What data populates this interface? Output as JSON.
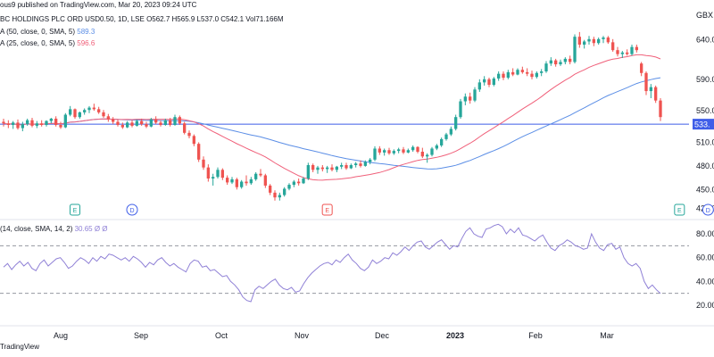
{
  "header": {
    "published": "ous9 published on TradingView.com, Mar 20, 2023 09:24 UTC",
    "symbol": "BC HOLDINGS PLC ORD USD0.50, 1D, LSE",
    "ohlc": "O562.7  H565.9  L537.0  C542.1  Vol71.166M",
    "ma50_label": "A (50, close, 0, SMA, 5)",
    "ma50_value": "589.3",
    "ma25_label": "A (25, close, 0, SMA, 5)",
    "ma25_value": "596.6",
    "rsi_label": "(14, close, SMA, 14, 2)",
    "rsi_values": "30.65  Ø  Ø"
  },
  "watermark": "TradingView",
  "colors": {
    "up": "#26a69a",
    "down": "#ef5350",
    "ma25": "#f0607a",
    "ma50": "#5b8ee6",
    "hline": "#3f5ee8",
    "rsi": "#8f80d6",
    "event_e": "#26a69a",
    "event_d": "#3f5ee8",
    "event_flash": "#9c27b0"
  },
  "chart_data": [
    {
      "type": "candlestick",
      "currency": "GBX",
      "y_ticks": [
        "640.0",
        "590.0",
        "550.0",
        "510.0",
        "480.0",
        "450.0",
        "426.0"
      ],
      "ylim": [
        413,
        668
      ],
      "x_labels": [
        "Aug",
        "Sep",
        "Oct",
        "Nov",
        "Dec",
        "2023",
        "Feb",
        "Mar"
      ],
      "price_line": {
        "value": 533.0,
        "label": "533."
      },
      "ma_series": [
        {
          "name": "MA 25",
          "value_last": 596.6
        },
        {
          "name": "MA 50",
          "value_last": 589.3
        }
      ],
      "events": [
        "E",
        "D",
        "E",
        "E",
        "D",
        "⚡"
      ],
      "ohlc": [
        {
          "o": 536,
          "h": 540,
          "l": 530,
          "c": 534
        },
        {
          "o": 534,
          "h": 538,
          "l": 528,
          "c": 532
        },
        {
          "o": 532,
          "h": 537,
          "l": 527,
          "c": 535
        },
        {
          "o": 535,
          "h": 539,
          "l": 526,
          "c": 528
        },
        {
          "o": 528,
          "h": 536,
          "l": 524,
          "c": 533
        },
        {
          "o": 533,
          "h": 540,
          "l": 531,
          "c": 538
        },
        {
          "o": 538,
          "h": 541,
          "l": 529,
          "c": 531
        },
        {
          "o": 531,
          "h": 537,
          "l": 528,
          "c": 534
        },
        {
          "o": 534,
          "h": 538,
          "l": 530,
          "c": 532
        },
        {
          "o": 532,
          "h": 538,
          "l": 530,
          "c": 537
        },
        {
          "o": 537,
          "h": 541,
          "l": 534,
          "c": 540
        },
        {
          "o": 540,
          "h": 543,
          "l": 530,
          "c": 532
        },
        {
          "o": 532,
          "h": 536,
          "l": 527,
          "c": 529
        },
        {
          "o": 529,
          "h": 547,
          "l": 528,
          "c": 545
        },
        {
          "o": 545,
          "h": 556,
          "l": 543,
          "c": 552
        },
        {
          "o": 552,
          "h": 553,
          "l": 540,
          "c": 542
        },
        {
          "o": 542,
          "h": 549,
          "l": 540,
          "c": 548
        },
        {
          "o": 548,
          "h": 553,
          "l": 545,
          "c": 551
        },
        {
          "o": 551,
          "h": 556,
          "l": 547,
          "c": 554
        },
        {
          "o": 554,
          "h": 559,
          "l": 550,
          "c": 552
        },
        {
          "o": 552,
          "h": 555,
          "l": 546,
          "c": 548
        },
        {
          "o": 548,
          "h": 551,
          "l": 541,
          "c": 543
        },
        {
          "o": 543,
          "h": 546,
          "l": 536,
          "c": 539
        },
        {
          "o": 539,
          "h": 542,
          "l": 533,
          "c": 536
        },
        {
          "o": 536,
          "h": 539,
          "l": 530,
          "c": 532
        },
        {
          "o": 532,
          "h": 535,
          "l": 527,
          "c": 529
        },
        {
          "o": 529,
          "h": 537,
          "l": 528,
          "c": 535
        },
        {
          "o": 535,
          "h": 538,
          "l": 529,
          "c": 531
        },
        {
          "o": 531,
          "h": 539,
          "l": 530,
          "c": 537
        },
        {
          "o": 537,
          "h": 540,
          "l": 531,
          "c": 533
        },
        {
          "o": 533,
          "h": 536,
          "l": 528,
          "c": 530
        },
        {
          "o": 530,
          "h": 541,
          "l": 529,
          "c": 539
        },
        {
          "o": 539,
          "h": 543,
          "l": 533,
          "c": 535
        },
        {
          "o": 535,
          "h": 538,
          "l": 530,
          "c": 532
        },
        {
          "o": 532,
          "h": 540,
          "l": 531,
          "c": 538
        },
        {
          "o": 538,
          "h": 541,
          "l": 530,
          "c": 532
        },
        {
          "o": 532,
          "h": 545,
          "l": 531,
          "c": 542
        },
        {
          "o": 542,
          "h": 544,
          "l": 532,
          "c": 534
        },
        {
          "o": 534,
          "h": 536,
          "l": 520,
          "c": 522
        },
        {
          "o": 522,
          "h": 525,
          "l": 515,
          "c": 518
        },
        {
          "o": 518,
          "h": 520,
          "l": 505,
          "c": 508
        },
        {
          "o": 508,
          "h": 510,
          "l": 485,
          "c": 488
        },
        {
          "o": 488,
          "h": 492,
          "l": 475,
          "c": 478
        },
        {
          "o": 478,
          "h": 482,
          "l": 460,
          "c": 464
        },
        {
          "o": 464,
          "h": 470,
          "l": 455,
          "c": 466
        },
        {
          "o": 466,
          "h": 478,
          "l": 464,
          "c": 475
        },
        {
          "o": 475,
          "h": 477,
          "l": 462,
          "c": 465
        },
        {
          "o": 465,
          "h": 468,
          "l": 456,
          "c": 459
        },
        {
          "o": 459,
          "h": 466,
          "l": 457,
          "c": 463
        },
        {
          "o": 463,
          "h": 465,
          "l": 450,
          "c": 453
        },
        {
          "o": 453,
          "h": 462,
          "l": 451,
          "c": 460
        },
        {
          "o": 460,
          "h": 468,
          "l": 455,
          "c": 458
        },
        {
          "o": 458,
          "h": 466,
          "l": 456,
          "c": 463
        },
        {
          "o": 463,
          "h": 472,
          "l": 461,
          "c": 470
        },
        {
          "o": 470,
          "h": 476,
          "l": 466,
          "c": 468
        },
        {
          "o": 468,
          "h": 470,
          "l": 452,
          "c": 455
        },
        {
          "o": 455,
          "h": 457,
          "l": 443,
          "c": 446
        },
        {
          "o": 446,
          "h": 449,
          "l": 436,
          "c": 440
        },
        {
          "o": 440,
          "h": 446,
          "l": 436,
          "c": 443
        },
        {
          "o": 443,
          "h": 453,
          "l": 441,
          "c": 451
        },
        {
          "o": 451,
          "h": 458,
          "l": 449,
          "c": 456
        },
        {
          "o": 456,
          "h": 462,
          "l": 453,
          "c": 460
        },
        {
          "o": 460,
          "h": 464,
          "l": 455,
          "c": 458
        },
        {
          "o": 458,
          "h": 466,
          "l": 457,
          "c": 464
        },
        {
          "o": 464,
          "h": 484,
          "l": 462,
          "c": 481
        },
        {
          "o": 481,
          "h": 483,
          "l": 472,
          "c": 475
        },
        {
          "o": 475,
          "h": 480,
          "l": 470,
          "c": 478
        },
        {
          "o": 478,
          "h": 481,
          "l": 473,
          "c": 476
        },
        {
          "o": 476,
          "h": 480,
          "l": 471,
          "c": 478
        },
        {
          "o": 478,
          "h": 482,
          "l": 473,
          "c": 475
        },
        {
          "o": 475,
          "h": 480,
          "l": 472,
          "c": 479
        },
        {
          "o": 479,
          "h": 484,
          "l": 476,
          "c": 481
        },
        {
          "o": 481,
          "h": 484,
          "l": 475,
          "c": 477
        },
        {
          "o": 477,
          "h": 483,
          "l": 476,
          "c": 481
        },
        {
          "o": 481,
          "h": 485,
          "l": 478,
          "c": 483
        },
        {
          "o": 483,
          "h": 487,
          "l": 478,
          "c": 480
        },
        {
          "o": 480,
          "h": 487,
          "l": 479,
          "c": 485
        },
        {
          "o": 485,
          "h": 490,
          "l": 482,
          "c": 488
        },
        {
          "o": 488,
          "h": 505,
          "l": 486,
          "c": 502
        },
        {
          "o": 502,
          "h": 505,
          "l": 494,
          "c": 497
        },
        {
          "o": 497,
          "h": 502,
          "l": 493,
          "c": 500
        },
        {
          "o": 500,
          "h": 503,
          "l": 494,
          "c": 496
        },
        {
          "o": 496,
          "h": 501,
          "l": 494,
          "c": 499
        },
        {
          "o": 499,
          "h": 503,
          "l": 496,
          "c": 501
        },
        {
          "o": 501,
          "h": 504,
          "l": 495,
          "c": 497
        },
        {
          "o": 497,
          "h": 502,
          "l": 496,
          "c": 500
        },
        {
          "o": 500,
          "h": 506,
          "l": 498,
          "c": 504
        },
        {
          "o": 504,
          "h": 505,
          "l": 496,
          "c": 498
        },
        {
          "o": 498,
          "h": 503,
          "l": 490,
          "c": 492
        },
        {
          "o": 492,
          "h": 496,
          "l": 484,
          "c": 494
        },
        {
          "o": 494,
          "h": 504,
          "l": 492,
          "c": 502
        },
        {
          "o": 502,
          "h": 508,
          "l": 500,
          "c": 506
        },
        {
          "o": 506,
          "h": 516,
          "l": 504,
          "c": 514
        },
        {
          "o": 514,
          "h": 522,
          "l": 512,
          "c": 520
        },
        {
          "o": 520,
          "h": 530,
          "l": 518,
          "c": 527
        },
        {
          "o": 527,
          "h": 545,
          "l": 525,
          "c": 542
        },
        {
          "o": 542,
          "h": 565,
          "l": 540,
          "c": 562
        },
        {
          "o": 562,
          "h": 572,
          "l": 557,
          "c": 568
        },
        {
          "o": 568,
          "h": 573,
          "l": 559,
          "c": 563
        },
        {
          "o": 563,
          "h": 580,
          "l": 561,
          "c": 577
        },
        {
          "o": 577,
          "h": 590,
          "l": 574,
          "c": 586
        },
        {
          "o": 586,
          "h": 594,
          "l": 582,
          "c": 590
        },
        {
          "o": 590,
          "h": 592,
          "l": 580,
          "c": 583
        },
        {
          "o": 583,
          "h": 593,
          "l": 581,
          "c": 591
        },
        {
          "o": 591,
          "h": 600,
          "l": 588,
          "c": 597
        },
        {
          "o": 597,
          "h": 600,
          "l": 589,
          "c": 592
        },
        {
          "o": 592,
          "h": 602,
          "l": 590,
          "c": 599
        },
        {
          "o": 599,
          "h": 604,
          "l": 594,
          "c": 596
        },
        {
          "o": 596,
          "h": 604,
          "l": 595,
          "c": 602
        },
        {
          "o": 602,
          "h": 606,
          "l": 597,
          "c": 599
        },
        {
          "o": 599,
          "h": 604,
          "l": 594,
          "c": 597
        },
        {
          "o": 597,
          "h": 601,
          "l": 590,
          "c": 593
        },
        {
          "o": 593,
          "h": 600,
          "l": 591,
          "c": 598
        },
        {
          "o": 598,
          "h": 603,
          "l": 594,
          "c": 600
        },
        {
          "o": 600,
          "h": 613,
          "l": 598,
          "c": 610
        },
        {
          "o": 610,
          "h": 618,
          "l": 607,
          "c": 614
        },
        {
          "o": 614,
          "h": 616,
          "l": 606,
          "c": 609
        },
        {
          "o": 609,
          "h": 615,
          "l": 607,
          "c": 612
        },
        {
          "o": 612,
          "h": 618,
          "l": 609,
          "c": 616
        },
        {
          "o": 616,
          "h": 620,
          "l": 609,
          "c": 612
        },
        {
          "o": 612,
          "h": 647,
          "l": 610,
          "c": 644
        },
        {
          "o": 644,
          "h": 650,
          "l": 630,
          "c": 634
        },
        {
          "o": 634,
          "h": 640,
          "l": 629,
          "c": 638
        },
        {
          "o": 638,
          "h": 645,
          "l": 634,
          "c": 641
        },
        {
          "o": 641,
          "h": 644,
          "l": 632,
          "c": 636
        },
        {
          "o": 636,
          "h": 643,
          "l": 634,
          "c": 641
        },
        {
          "o": 641,
          "h": 645,
          "l": 636,
          "c": 643
        },
        {
          "o": 643,
          "h": 645,
          "l": 635,
          "c": 637
        },
        {
          "o": 637,
          "h": 641,
          "l": 625,
          "c": 627
        },
        {
          "o": 627,
          "h": 631,
          "l": 619,
          "c": 622
        },
        {
          "o": 622,
          "h": 626,
          "l": 617,
          "c": 624
        },
        {
          "o": 624,
          "h": 628,
          "l": 620,
          "c": 622
        },
        {
          "o": 622,
          "h": 634,
          "l": 620,
          "c": 631
        },
        {
          "o": 631,
          "h": 634,
          "l": 624,
          "c": 627
        },
        {
          "o": 610,
          "h": 612,
          "l": 594,
          "c": 598
        },
        {
          "o": 598,
          "h": 600,
          "l": 570,
          "c": 575
        },
        {
          "o": 575,
          "h": 584,
          "l": 566,
          "c": 580
        },
        {
          "o": 580,
          "h": 582,
          "l": 560,
          "c": 563
        },
        {
          "o": 563,
          "h": 566,
          "l": 537,
          "c": 542
        }
      ]
    },
    {
      "type": "line",
      "name": "RSI",
      "y_ticks": [
        "80.00",
        "60.00",
        "40.00",
        "20.00"
      ],
      "ylim": [
        14,
        92
      ],
      "bands": [
        70,
        30
      ],
      "values": [
        52,
        55,
        50,
        54,
        57,
        53,
        56,
        51,
        49,
        55,
        58,
        53,
        56,
        59,
        60,
        56,
        51,
        53,
        57,
        60,
        58,
        55,
        60,
        57,
        61,
        59,
        63,
        62,
        60,
        58,
        60,
        57,
        61,
        59,
        56,
        52,
        56,
        54,
        58,
        60,
        56,
        53,
        55,
        52,
        50,
        48,
        55,
        58,
        57,
        52,
        53,
        49,
        50,
        47,
        44,
        45,
        40,
        37,
        33,
        27,
        24,
        23,
        33,
        36,
        34,
        37,
        40,
        42,
        37,
        34,
        33,
        35,
        31,
        32,
        38,
        43,
        47,
        50,
        53,
        55,
        56,
        54,
        58,
        56,
        60,
        63,
        58,
        55,
        51,
        49,
        52,
        58,
        55,
        57,
        60,
        59,
        64,
        62,
        65,
        69,
        66,
        70,
        73,
        74,
        69,
        67,
        70,
        73,
        75,
        71,
        67,
        70,
        69,
        76,
        82,
        85,
        80,
        78,
        77,
        84,
        85,
        87,
        88,
        86,
        80,
        84,
        81,
        85,
        79,
        78,
        76,
        74,
        77,
        79,
        73,
        68,
        66,
        70,
        72,
        75,
        73,
        70,
        69,
        67,
        68,
        80,
        73,
        68,
        66,
        71,
        72,
        67,
        69,
        60,
        55,
        53,
        55,
        51,
        40,
        34,
        37,
        33,
        30
      ]
    }
  ]
}
